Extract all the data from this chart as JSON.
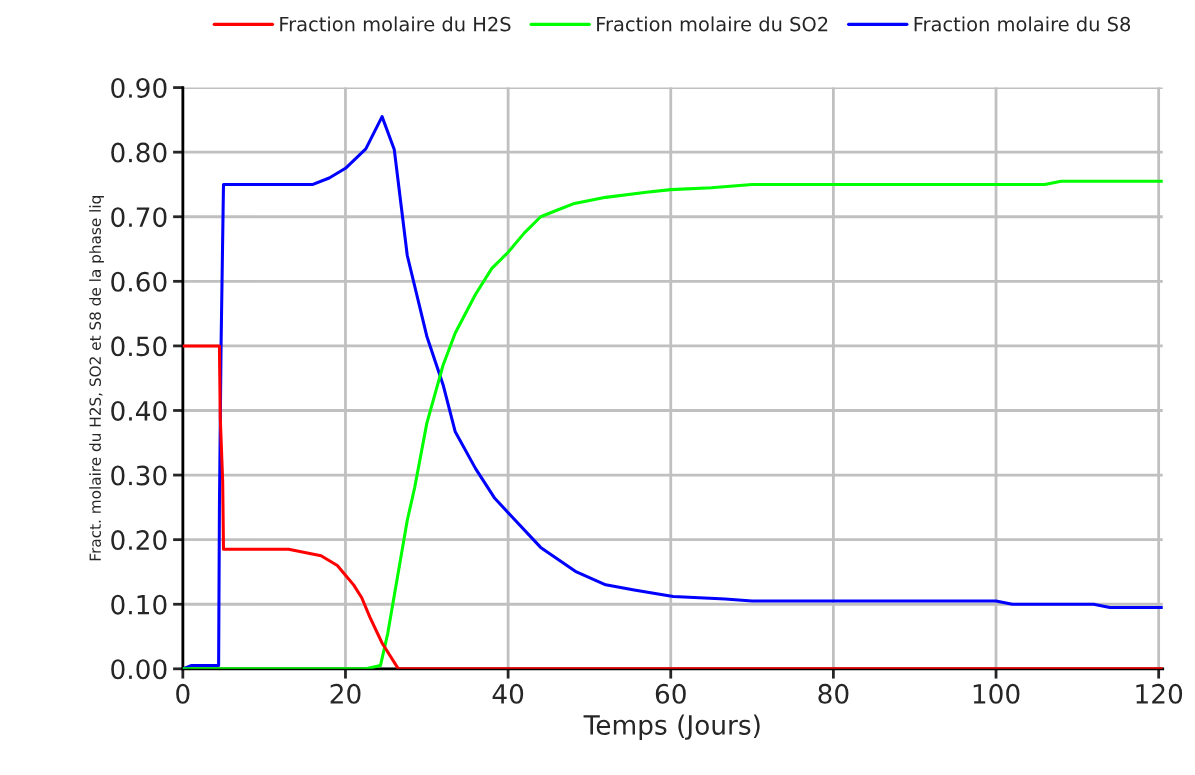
{
  "chart_data": {
    "type": "line",
    "xlabel": "Temps (Jours)",
    "ylabel": "Fract. molaire du H2S, SO2 et S8 de la phase liq",
    "xlim": [
      0,
      120.5
    ],
    "xticks": [
      0,
      20,
      40,
      60,
      80,
      100,
      120
    ],
    "ylim": [
      0,
      0.9
    ],
    "yticks": [
      {
        "value": 0,
        "label": "0.00"
      },
      {
        "value": 0.1,
        "label": "0.10"
      },
      {
        "value": 0.2,
        "label": "0.20"
      },
      {
        "value": 0.3,
        "label": "0.30"
      },
      {
        "value": 0.4,
        "label": "0.40"
      },
      {
        "value": 0.5,
        "label": "0.50"
      },
      {
        "value": 0.6,
        "label": "0.60"
      },
      {
        "value": 0.7,
        "label": "0.70"
      },
      {
        "value": 0.8,
        "label": "0.80"
      },
      {
        "value": 0.9,
        "label": "0.90"
      }
    ],
    "grid": true,
    "legend": "top",
    "marker": "none",
    "line_style": "solid",
    "series": [
      {
        "name": "Fraction molaire du H2S",
        "color": "#ff0000",
        "x": [
          0,
          4.5,
          4.6,
          4.9,
          5.0,
          13,
          15,
          17,
          19,
          20,
          21,
          22,
          23,
          24.5,
          26.5,
          60,
          120.5
        ],
        "values": [
          0.5,
          0.5,
          0.39,
          0.29,
          0.185,
          0.185,
          0.18,
          0.175,
          0.16,
          0.145,
          0.13,
          0.11,
          0.08,
          0.04,
          0.0,
          0.0,
          0.0
        ]
      },
      {
        "name": "Fraction molaire du SO2",
        "color": "#00ff00",
        "x": [
          0,
          22.5,
          24.3,
          25.2,
          26.5,
          27.6,
          28.5,
          30,
          32,
          33.5,
          36,
          38,
          40,
          42,
          44,
          46,
          48,
          52,
          57,
          60,
          65,
          70,
          106,
          108,
          120.5
        ],
        "values": [
          0.0,
          0.0,
          0.005,
          0.055,
          0.15,
          0.23,
          0.28,
          0.38,
          0.47,
          0.52,
          0.58,
          0.62,
          0.645,
          0.675,
          0.7,
          0.71,
          0.72,
          0.73,
          0.738,
          0.742,
          0.745,
          0.75,
          0.75,
          0.755,
          0.755
        ]
      },
      {
        "name": "Fraction molaire du S8",
        "color": "#0000ff",
        "x": [
          0,
          1,
          4.4,
          4.5,
          4.7,
          5.0,
          16,
          18,
          20,
          22.5,
          24.5,
          26,
          27.6,
          30,
          32,
          33.5,
          36,
          38.3,
          40.5,
          44,
          48.4,
          52,
          55.5,
          60.3,
          66.7,
          70,
          100,
          102,
          112,
          114,
          120.5
        ],
        "values": [
          0.0,
          0.005,
          0.005,
          0.25,
          0.5,
          0.75,
          0.75,
          0.76,
          0.775,
          0.805,
          0.855,
          0.804,
          0.64,
          0.515,
          0.44,
          0.367,
          0.31,
          0.265,
          0.235,
          0.188,
          0.15,
          0.13,
          0.122,
          0.112,
          0.108,
          0.105,
          0.105,
          0.1,
          0.1,
          0.095,
          0.095
        ]
      }
    ]
  }
}
